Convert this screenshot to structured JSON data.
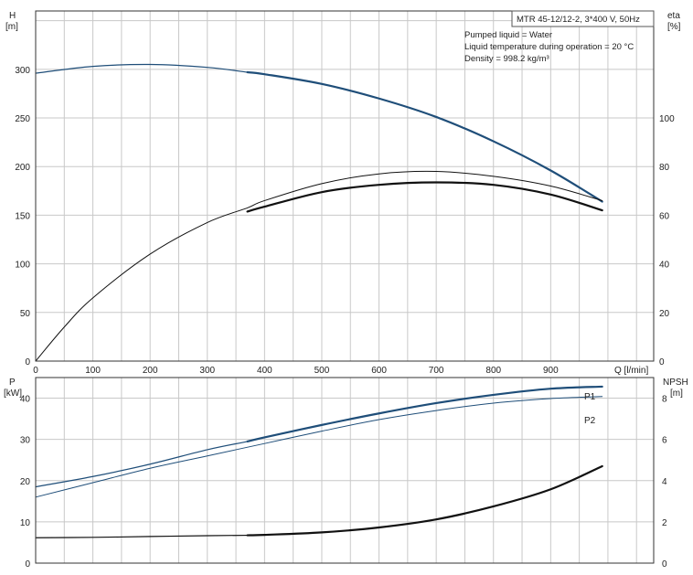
{
  "info": {
    "model": "MTR 45-12/12-2, 3*400 V, 50Hz",
    "lines": [
      "Pumped liquid = Water",
      "Liquid temperature during operation = 20 °C",
      "Density = 998.2 kg/m³"
    ]
  },
  "colors": {
    "blue": "#1f4e79",
    "black": "#111111",
    "grid": "#c8c8c8"
  },
  "chart_data": [
    {
      "type": "line",
      "panel": "top",
      "xlabel": "Q [l/min]",
      "ylabel_left": [
        "H",
        "[m]"
      ],
      "ylabel_right": [
        "eta",
        "[%]"
      ],
      "xlim": [
        0,
        1080
      ],
      "ylim_left": [
        0,
        360
      ],
      "ylim_right": [
        0,
        144
      ],
      "x_ticks": [
        0,
        100,
        200,
        300,
        400,
        500,
        600,
        700,
        800,
        900
      ],
      "y_ticks_left": [
        0,
        50,
        100,
        150,
        200,
        250,
        300
      ],
      "y_ticks_right": [
        0,
        20,
        40,
        60,
        80,
        100
      ],
      "grid": true,
      "series": [
        {
          "axis": "left",
          "color": "#1f4e79",
          "x": [
            0,
            100,
            200,
            300,
            370,
            400,
            500,
            600,
            700,
            800,
            900,
            990
          ],
          "y": [
            296,
            303,
            305,
            302,
            297,
            295,
            285,
            270,
            251,
            226,
            196,
            164
          ],
          "bold_from": 370
        },
        {
          "axis": "right",
          "color": "#111111",
          "x": [
            0,
            50,
            100,
            200,
            300,
            370,
            400,
            500,
            600,
            700,
            800,
            900,
            990
          ],
          "y": [
            0,
            14,
            26,
            44,
            57,
            63,
            66,
            73,
            77,
            78,
            76,
            72,
            66
          ]
        },
        {
          "axis": "right",
          "color": "#111111",
          "x": [
            370,
            400,
            500,
            600,
            700,
            800,
            900,
            990
          ],
          "y": [
            61.5,
            63.5,
            69.5,
            72.5,
            73.5,
            72.5,
            68.5,
            62
          ]
        }
      ]
    },
    {
      "type": "line",
      "panel": "bottom",
      "ylabel_left": [
        "P",
        "[kW]"
      ],
      "ylabel_right": [
        "NPSH",
        "[m]"
      ],
      "xlim": [
        0,
        1080
      ],
      "ylim_left": [
        0,
        45
      ],
      "ylim_right": [
        0,
        9
      ],
      "y_ticks_left": [
        0,
        10,
        20,
        30,
        40
      ],
      "y_ticks_right": [
        0,
        2,
        4,
        6,
        8
      ],
      "grid": true,
      "series": [
        {
          "name": "P1",
          "axis": "left",
          "color": "#1f4e79",
          "x": [
            0,
            100,
            200,
            300,
            370,
            400,
            500,
            600,
            700,
            800,
            900,
            990
          ],
          "y": [
            18.5,
            21,
            24,
            27.5,
            29.5,
            30.5,
            33.5,
            36.3,
            38.8,
            40.8,
            42.3,
            42.8
          ],
          "bold_from": 370
        },
        {
          "name": "P2",
          "axis": "left",
          "color": "#1f4e79",
          "x": [
            0,
            100,
            200,
            300,
            400,
            500,
            600,
            700,
            800,
            900,
            990
          ],
          "y": [
            16,
            19.5,
            23,
            26,
            29,
            32,
            34.8,
            37,
            38.8,
            39.9,
            40.4
          ]
        },
        {
          "axis": "right",
          "color": "#111111",
          "x": [
            0,
            100,
            200,
            300,
            370,
            400,
            500,
            600,
            700,
            800,
            900,
            990
          ],
          "y": [
            1.23,
            1.25,
            1.29,
            1.33,
            1.35,
            1.37,
            1.49,
            1.73,
            2.12,
            2.75,
            3.58,
            4.7
          ],
          "bold_from": 370
        }
      ]
    }
  ]
}
